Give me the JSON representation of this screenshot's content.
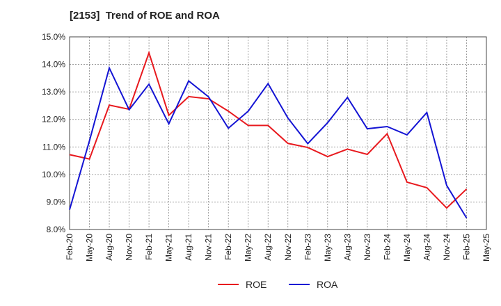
{
  "chart_data": {
    "type": "line",
    "title": "[2153]  Trend of ROE and ROA",
    "x": [
      "Feb-20",
      "May-20",
      "Aug-20",
      "Nov-20",
      "Feb-21",
      "May-21",
      "Aug-21",
      "Nov-21",
      "Feb-22",
      "May-22",
      "Aug-22",
      "Nov-22",
      "Feb-23",
      "May-23",
      "Aug-23",
      "Nov-23",
      "Feb-24",
      "May-24",
      "Aug-24",
      "Nov-24",
      "Feb-25",
      "May-25"
    ],
    "ylim": [
      8.0,
      15.0
    ],
    "yticks": [
      "8.0%",
      "9.0%",
      "10.0%",
      "11.0%",
      "12.0%",
      "13.0%",
      "14.0%",
      "15.0%"
    ],
    "grid": true,
    "legend_position": "bottom-center",
    "series": [
      {
        "name": "ROE",
        "color": "#e8191e",
        "values": [
          10.72,
          10.56,
          12.52,
          12.37,
          14.42,
          12.15,
          12.83,
          12.75,
          12.3,
          11.78,
          11.78,
          11.13,
          10.98,
          10.65,
          10.92,
          10.73,
          11.48,
          9.72,
          9.52,
          8.78,
          9.47,
          null
        ]
      },
      {
        "name": "ROA",
        "color": "#1414d4",
        "values": [
          8.72,
          11.22,
          13.87,
          12.35,
          13.28,
          11.84,
          13.4,
          12.82,
          11.68,
          12.3,
          13.3,
          12.05,
          11.12,
          11.88,
          12.8,
          11.66,
          11.74,
          11.44,
          12.25,
          9.6,
          8.42,
          null
        ]
      }
    ]
  }
}
